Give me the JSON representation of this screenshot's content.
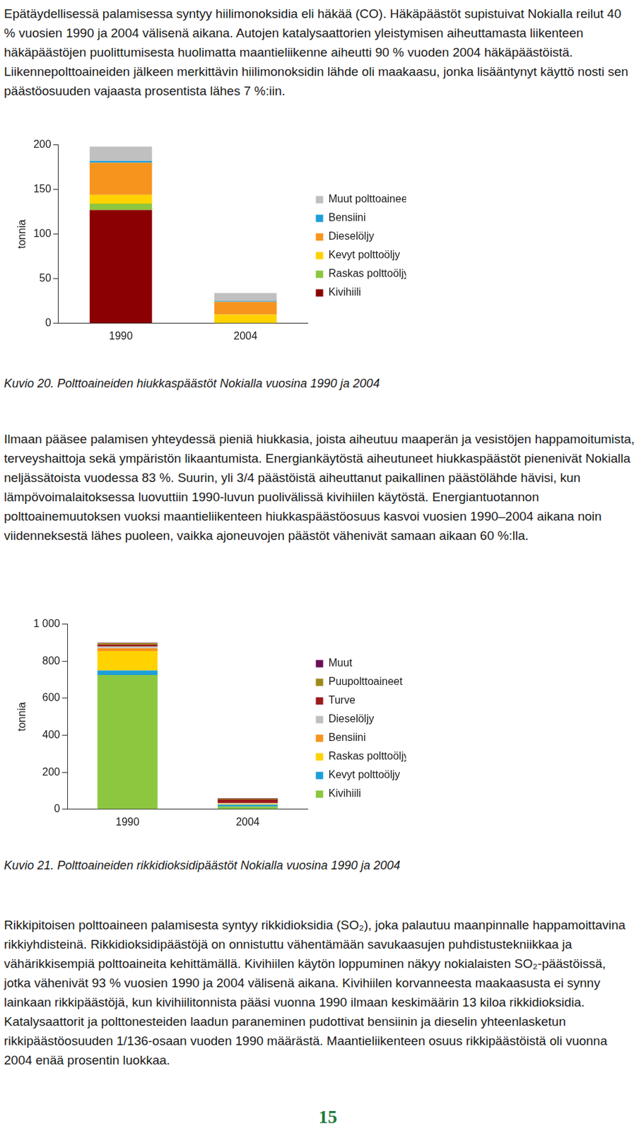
{
  "paragraphs": [
    "Epätäydellisessä palamisessa syntyy hiilimonoksidia eli häkää (CO). Häkäpäästöt supistuivat Nokialla reilut 40 % vuosien 1990 ja 2004 välisenä aikana. Autojen katalysaattorien yleistymisen aiheuttamasta liikenteen häkäpäästöjen puolittumisesta huolimatta maantieliikenne aiheutti 90 % vuoden 2004 häkäpäästöistä. Liikennepolttoaineiden jälkeen merkittävin hiilimonoksidin lähde oli maakaasu, jonka lisääntynyt käyttö nosti sen päästöosuuden vajaasta prosentista lähes 7 %:iin.",
    "Ilmaan pääsee palamisen yhteydessä pieniä hiukkasia, joista aiheutuu maaperän ja vesistöjen happamoitumista, terveyshaittoja sekä ympäristön likaantumista. Energiankäytöstä aiheutuneet hiukkaspäästöt pienenivät Nokialla neljässätoista vuodessa 83 %. Suurin, yli 3/4 päästöistä aiheuttanut paikallinen päästölähde hävisi, kun lämpövoimalaitoksessa luovuttiin 1990-luvun puolivälissä kivihiilen käytöstä. Energiantuotannon polttoainemuutoksen vuoksi maantieliikenteen hiukkaspäästöosuus kasvoi vuosien 1990–2004 aikana noin viidenneksestä lähes puoleen, vaikka ajoneuvojen päästöt vähenivät samaan aikaan 60 %:lla.",
    "Rikkipitoisen polttoaineen palamisesta syntyy rikkidioksidia (SO₂), joka palautuu maanpinnalle happamoittavina rikkiyhdisteinä. Rikkidioksidipäästöjä on onnistuttu vähentämään savukaasujen puhdistustekniikkaa ja vähärikkisempiä polttoaineita kehittämällä. Kivihiilen käytön loppuminen näkyy nokialaisten SO₂-päästöissä, jotka vähenivät 93 % vuosien 1990 ja 2004 välisenä aikana. Kivihiilen korvanneesta maakaasusta ei synny lainkaan rikkipäästöjä, kun kivihiilitonnista pääsi vuonna 1990 ilmaan keskimäärin 13 kiloa rikkidioksidia. Katalysaattorit ja polttonesteiden laadun paraneminen pudottivat bensiinin ja dieselin yhteenlasketun rikkipäästöosuuden 1/136-osaan vuoden 1990 määrästä. Maantieliikenteen osuus rikkipäästöistä oli vuonna 2004 enää prosentin luokkaa."
  ],
  "chart_data": [
    {
      "type": "bar",
      "title": "Kuvio 20. Polttoaineiden hiukkaspäästöt Nokialla vuosina 1990 ja 2004",
      "y_label": "tonnia",
      "categories": [
        "1990",
        "2004"
      ],
      "series": [
        {
          "name": "Kivihiili",
          "color": "#8b0000",
          "values": [
            127,
            0
          ]
        },
        {
          "name": "Raskas polttoöljy",
          "color": "#8dc63f",
          "values": [
            7,
            0
          ]
        },
        {
          "name": "Kevyt polttoöljy",
          "color": "#ffd200",
          "values": [
            10,
            10
          ]
        },
        {
          "name": "Dieselöljy",
          "color": "#f7941d",
          "values": [
            36,
            14
          ]
        },
        {
          "name": "Bensiini",
          "color": "#1e9fd8",
          "values": [
            2,
            1
          ]
        },
        {
          "name": "Muut polttoaineet",
          "color": "#c0c0c0",
          "values": [
            16,
            9
          ]
        }
      ],
      "ylim": [
        0,
        200
      ],
      "yticks": [
        0,
        50,
        100,
        150,
        200
      ],
      "stacked": true,
      "grid": false,
      "legend": "right"
    },
    {
      "type": "bar",
      "title": "Kuvio 21. Polttoaineiden rikkidioksidipäästöt Nokialla vuosina 1990 ja 2004",
      "y_label": "tonnia",
      "categories": [
        "1990",
        "2004"
      ],
      "series": [
        {
          "name": "Kivihiili",
          "color": "#8dc63f",
          "values": [
            725,
            15
          ]
        },
        {
          "name": "Kevyt polttoöljy",
          "color": "#1e9fd8",
          "values": [
            25,
            10
          ]
        },
        {
          "name": "Raskas polttoöljy",
          "color": "#ffd200",
          "values": [
            105,
            5
          ]
        },
        {
          "name": "Bensiini",
          "color": "#f7941d",
          "values": [
            15,
            0
          ]
        },
        {
          "name": "Dieselöljy",
          "color": "#c0c0c0",
          "values": [
            10,
            3
          ]
        },
        {
          "name": "Turve",
          "color": "#9b1b1b",
          "values": [
            10,
            20
          ]
        },
        {
          "name": "Puupolttoaineet",
          "color": "#9c8a1a",
          "values": [
            8,
            5
          ]
        },
        {
          "name": "Muut",
          "color": "#6a0e5c",
          "values": [
            2,
            2
          ]
        }
      ],
      "ylim": [
        0,
        1000
      ],
      "yticks": [
        0,
        200,
        400,
        600,
        800,
        {
          "value": 1000,
          "label": "1 000"
        }
      ],
      "stacked": true,
      "grid": false,
      "legend": "right"
    }
  ],
  "page_number": "15"
}
